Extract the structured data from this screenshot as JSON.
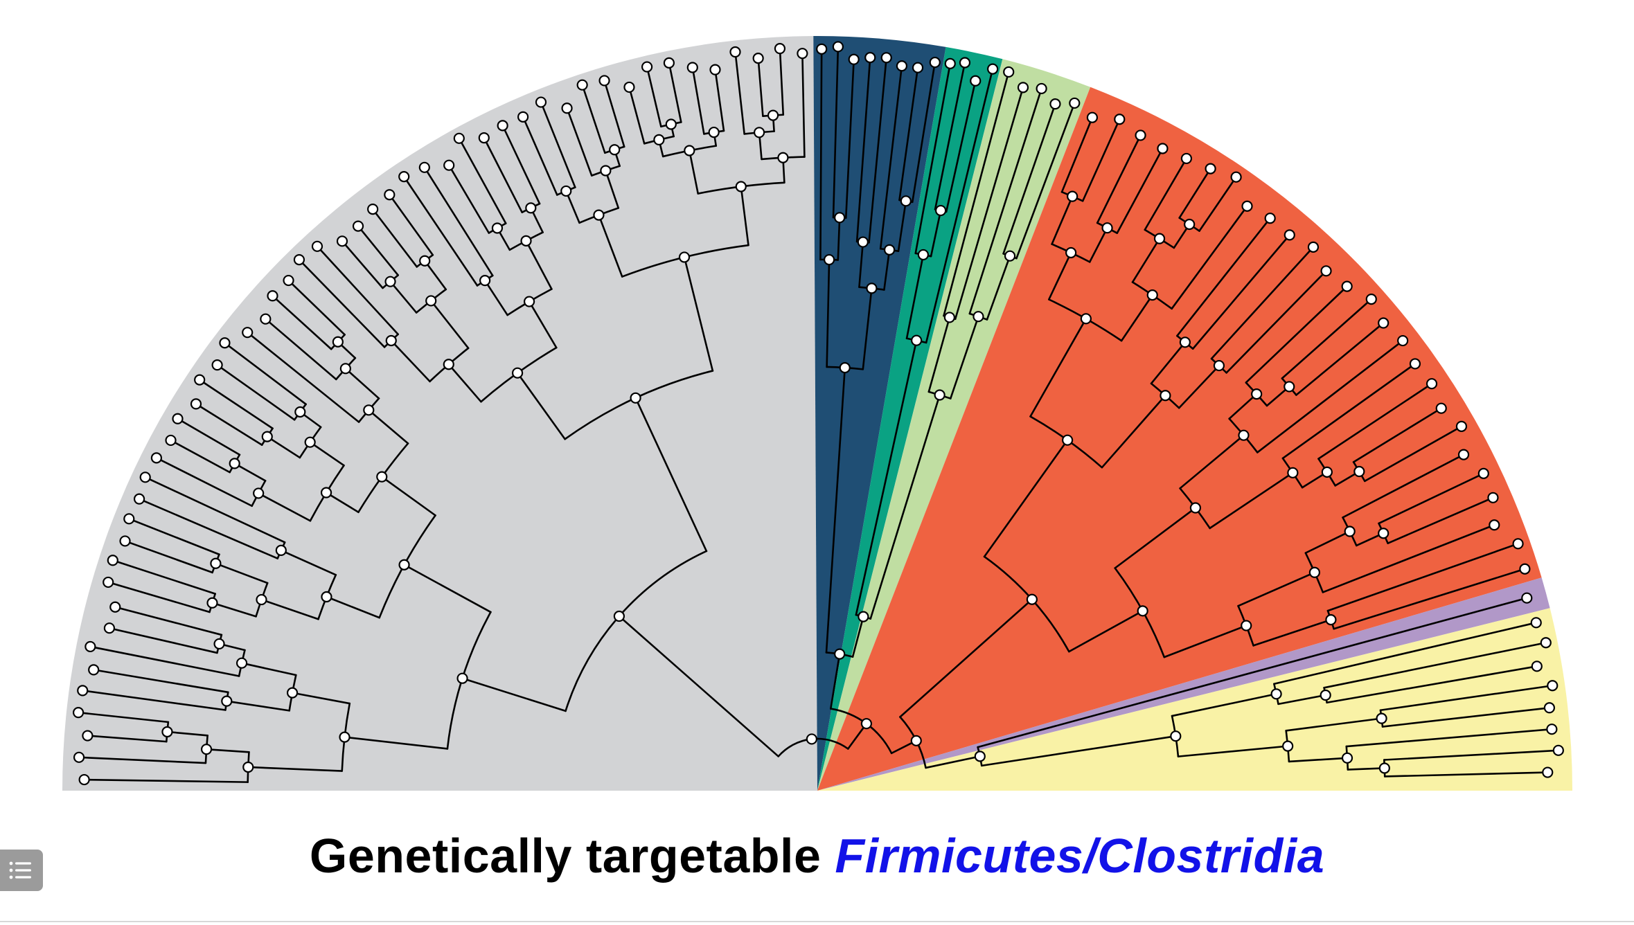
{
  "caption": {
    "prefix": "Genetically targetable",
    "taxon": "Firmicutes/Clostridia"
  },
  "tree": {
    "colors": {
      "background_wedge": "#d2d3d5",
      "clade_navy": "#1f4e74",
      "clade_teal": "#0aa283",
      "clade_light_green": "#c0dea2",
      "clade_orange": "#ef6241",
      "clade_purple": "#b198c8",
      "clade_yellow": "#f9f2a6",
      "branch": "#000000",
      "node_fill": "#ffffff"
    },
    "counts": {
      "grey": 52,
      "navy": 8,
      "teal": 4,
      "light_green": 5,
      "orange": 26,
      "purple": 1,
      "yellow": 8
    }
  },
  "menu": {
    "icon": "list-icon"
  }
}
